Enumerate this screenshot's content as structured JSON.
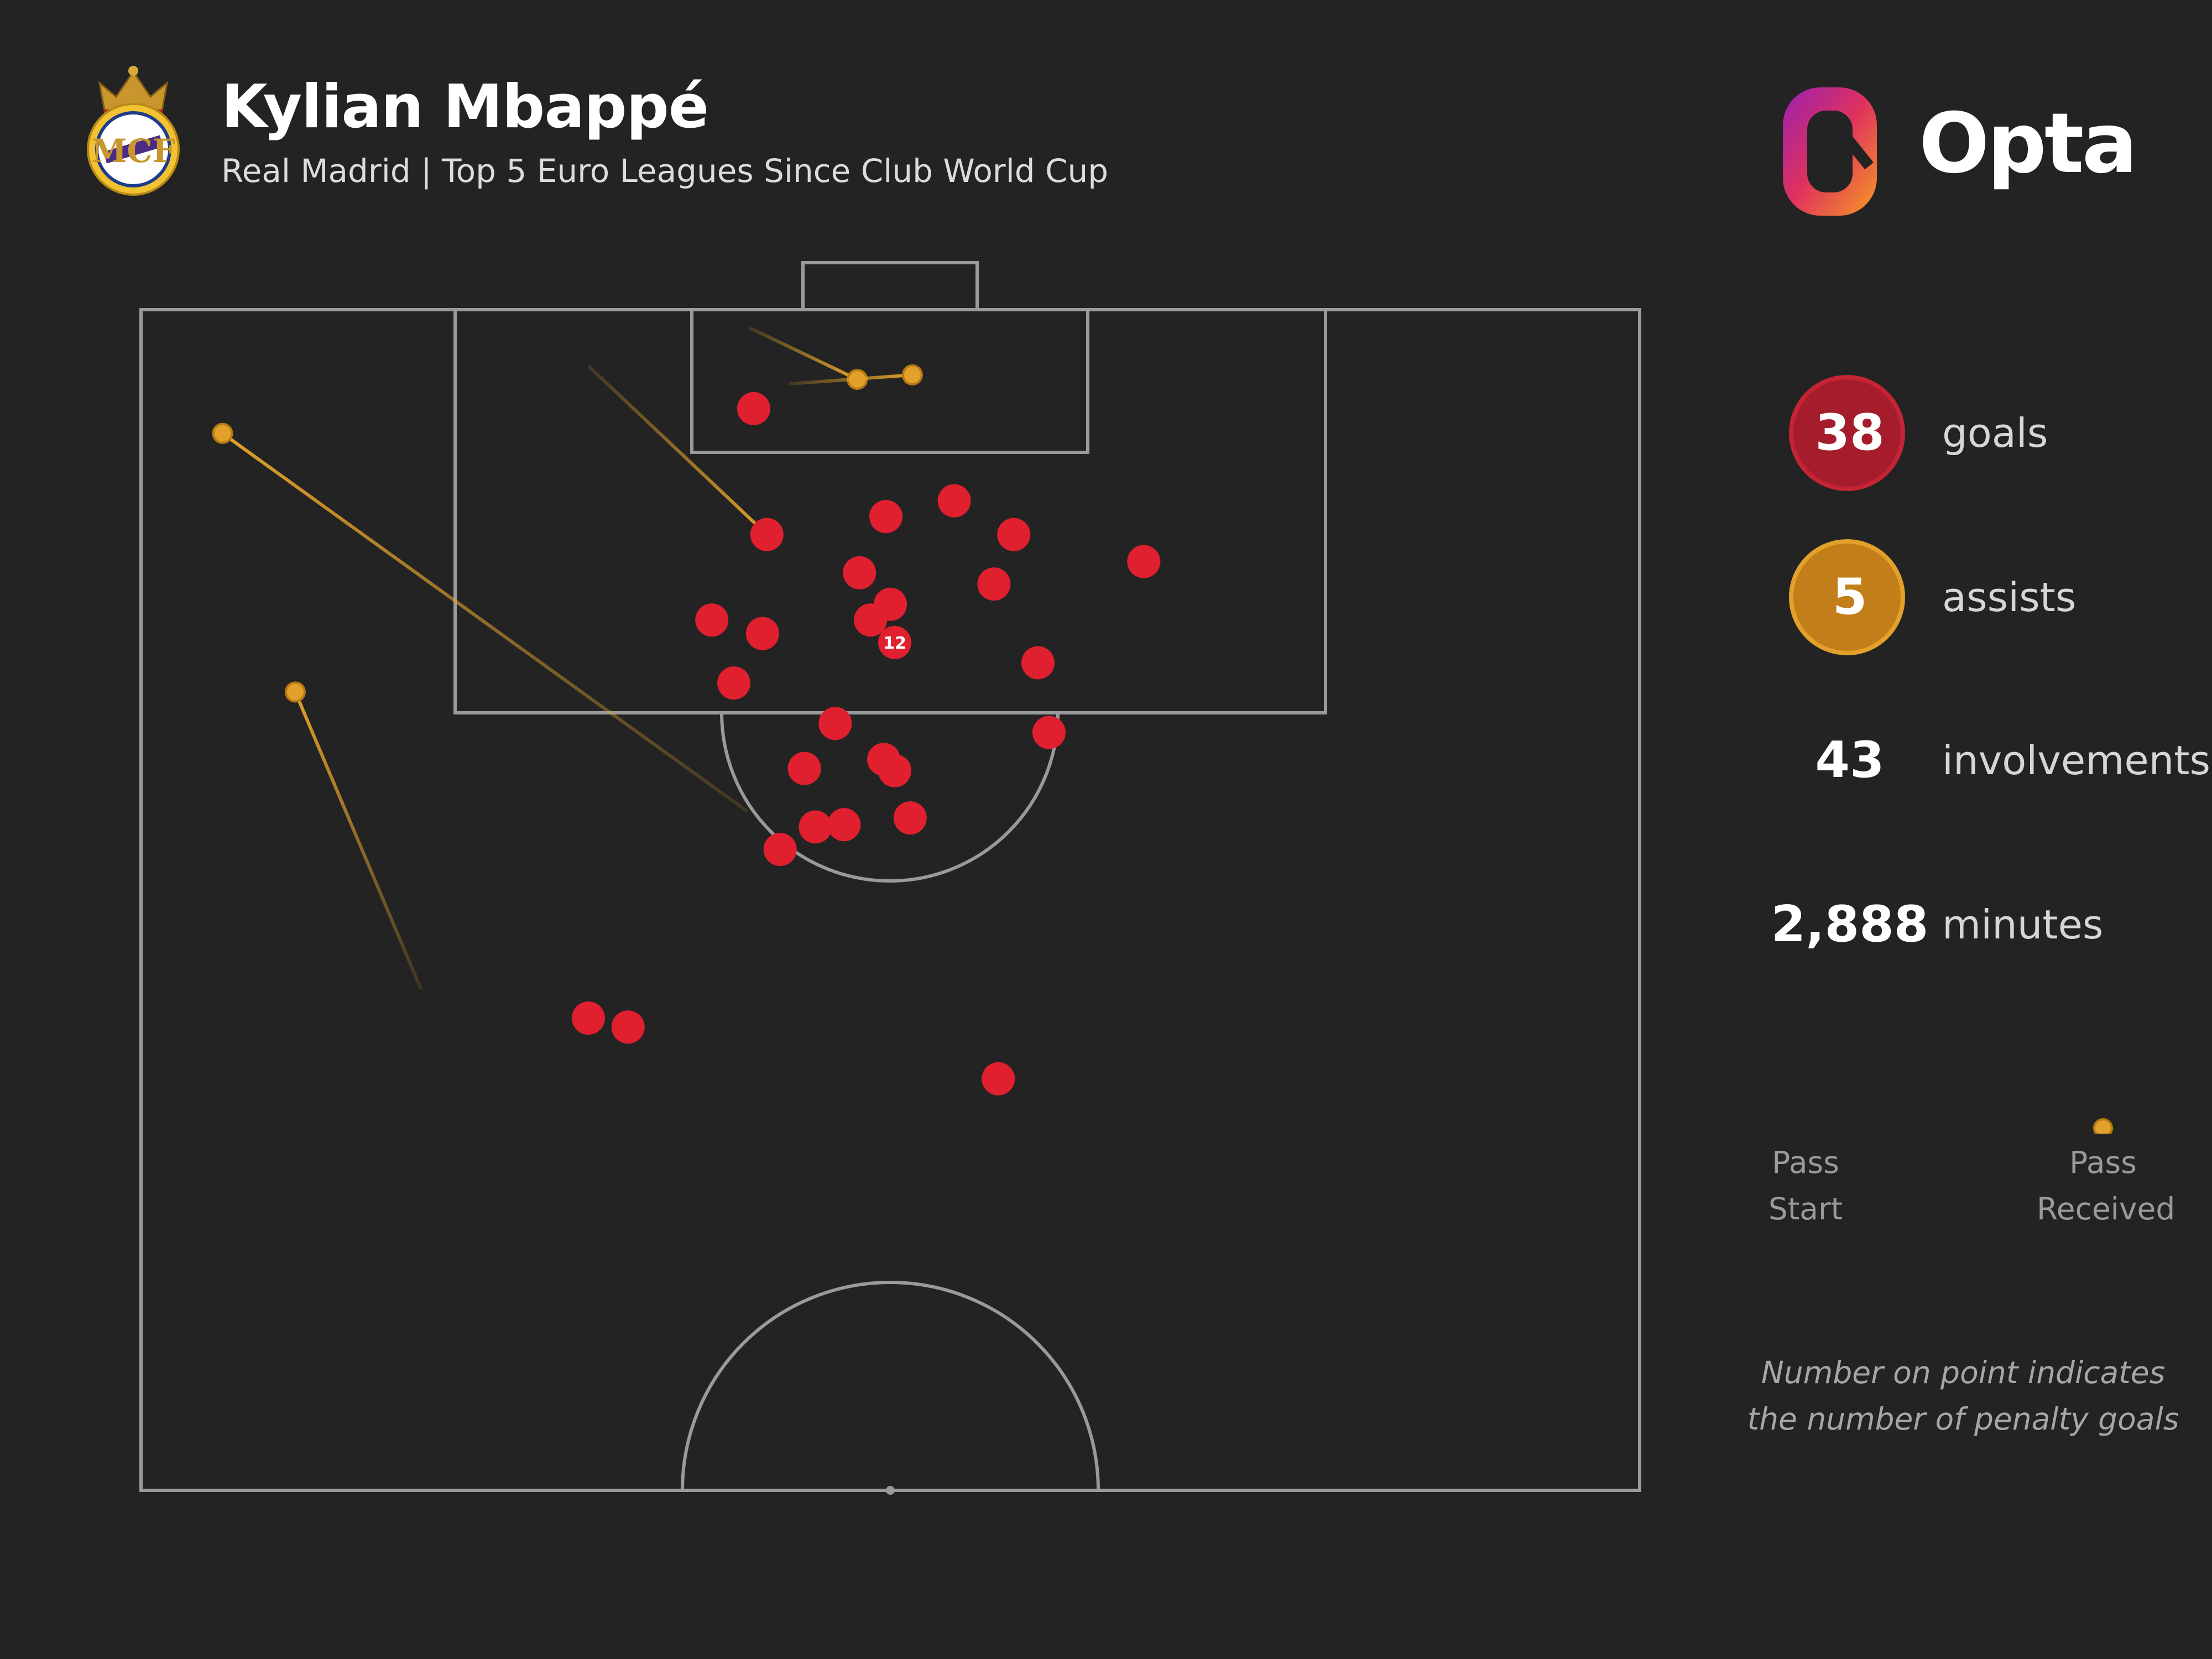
{
  "header": {
    "title": "Kylian Mbappé",
    "subtitle": "Real Madrid | Top 5 Euro Leagues Since Club World Cup"
  },
  "crest": {
    "icon": "real-madrid-crest-icon"
  },
  "brand": {
    "name": "Opta",
    "icon": "opta-logo-icon"
  },
  "colors": {
    "background": "#232323",
    "goal": "#e0202f",
    "assist": "#e1a12a",
    "pitch_line": "#9a9a9a"
  },
  "stats": {
    "goals": {
      "value": "38",
      "label": "goals"
    },
    "assists": {
      "value": "5",
      "label": "assists"
    },
    "involvements": {
      "value": "43",
      "label": "involvements"
    },
    "minutes": {
      "value": "2,888",
      "label": "minutes"
    }
  },
  "legend": {
    "start_label": "Pass\nStart",
    "end_label": "Pass\nReceived"
  },
  "note": "Number on point indicates\nthe number of penalty goals",
  "chart_data": {
    "type": "scatter",
    "pitch": "attacking half, vertical, goal at top",
    "units": "x: metres from left touchline (0-68), y: metres from goal line (0-52.5)",
    "goals": [
      {
        "x": 27.8,
        "y": 4.4
      },
      {
        "x": 28.4,
        "y": 10.0
      },
      {
        "x": 32.6,
        "y": 11.7
      },
      {
        "x": 33.8,
        "y": 9.2
      },
      {
        "x": 36.9,
        "y": 8.5
      },
      {
        "x": 39.6,
        "y": 10.0
      },
      {
        "x": 38.7,
        "y": 12.2
      },
      {
        "x": 45.5,
        "y": 11.2
      },
      {
        "x": 25.9,
        "y": 13.8
      },
      {
        "x": 28.2,
        "y": 14.4
      },
      {
        "x": 33.1,
        "y": 13.8
      },
      {
        "x": 34.0,
        "y": 13.1
      },
      {
        "x": 34.2,
        "y": 14.8,
        "penalty_goals": 12
      },
      {
        "x": 26.9,
        "y": 16.6
      },
      {
        "x": 40.7,
        "y": 15.7
      },
      {
        "x": 31.5,
        "y": 18.4
      },
      {
        "x": 41.2,
        "y": 18.8
      },
      {
        "x": 30.1,
        "y": 20.4
      },
      {
        "x": 33.7,
        "y": 20.0
      },
      {
        "x": 34.2,
        "y": 20.5
      },
      {
        "x": 29.0,
        "y": 24.0
      },
      {
        "x": 30.6,
        "y": 23.0
      },
      {
        "x": 31.9,
        "y": 22.9
      },
      {
        "x": 34.9,
        "y": 22.6
      },
      {
        "x": 20.3,
        "y": 31.5
      },
      {
        "x": 22.1,
        "y": 31.9
      },
      {
        "x": 38.9,
        "y": 34.2
      }
    ],
    "assists": [
      {
        "start": {
          "x": 27.6,
          "y": 0.8
        },
        "end": {
          "x": 32.5,
          "y": 3.1
        }
      },
      {
        "start": {
          "x": 29.4,
          "y": 3.3
        },
        "end": {
          "x": 35.0,
          "y": 2.9
        }
      },
      {
        "start": {
          "x": 20.3,
          "y": 2.5
        },
        "end": {
          "x": 28.4,
          "y": 10.0
        }
      },
      {
        "start": {
          "x": 27.5,
          "y": 22.3
        },
        "end": {
          "x": 3.7,
          "y": 5.5
        }
      },
      {
        "start": {
          "x": 12.7,
          "y": 30.2
        },
        "end": {
          "x": 7.0,
          "y": 17.0
        }
      }
    ]
  }
}
